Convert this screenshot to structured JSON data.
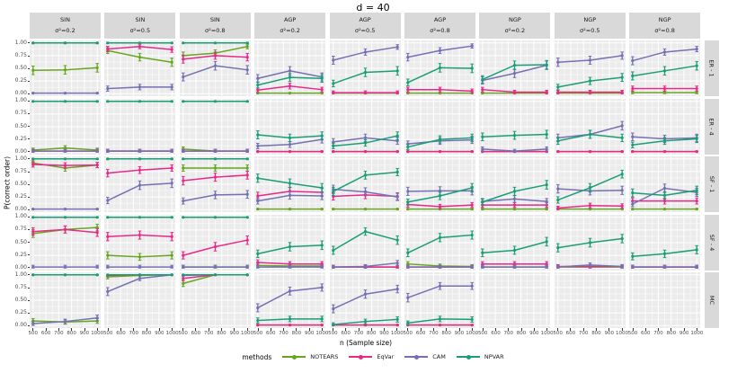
{
  "chart_data": {
    "type": "line",
    "title": "d =  40",
    "xlabel": "n (Sample size)",
    "ylabel": "P(correct order)",
    "legend_title": "methods",
    "legend_position": "bottom",
    "grid": true,
    "x": [
      500,
      750,
      1000
    ],
    "x_axis_ticks": [
      500,
      600,
      700,
      800,
      900,
      1000
    ],
    "y_axis_ticks": [
      1.0,
      0.75,
      0.5,
      0.25,
      0.0
    ],
    "ylim": [
      0,
      1
    ],
    "methods": [
      {
        "name": "NOTEARS",
        "color": "#66A61E"
      },
      {
        "name": "EqVar",
        "color": "#E7298A"
      },
      {
        "name": "CAM",
        "color": "#7570B3"
      },
      {
        "name": "NPVAR",
        "color": "#1B9E77"
      }
    ],
    "col_facets": [
      {
        "top": "SIN",
        "bottom": "σ²=0.2"
      },
      {
        "top": "SIN",
        "bottom": "σ²=0.5"
      },
      {
        "top": "SIN",
        "bottom": "σ²=0.8"
      },
      {
        "top": "AGP",
        "bottom": "σ²=0.2"
      },
      {
        "top": "AGP",
        "bottom": "σ²=0.5"
      },
      {
        "top": "AGP",
        "bottom": "σ²=0.8"
      },
      {
        "top": "NGP",
        "bottom": "σ²=0.2"
      },
      {
        "top": "NGP",
        "bottom": "σ²=0.5"
      },
      {
        "top": "NGP",
        "bottom": "σ²=0.8"
      }
    ],
    "row_facets": [
      "ER - 1",
      "ER - 4",
      "SF - 1",
      "SF - 4",
      "MC"
    ],
    "panels": [
      [
        {
          "NOTEARS": [
            0.46,
            0.47,
            0.51
          ],
          "EqVar": [
            1,
            1,
            1
          ],
          "CAM": [
            0.01,
            0.01,
            0.01
          ],
          "NPVAR": [
            1,
            1,
            1
          ]
        },
        {
          "NOTEARS": [
            0.85,
            0.72,
            0.62
          ],
          "EqVar": [
            0.88,
            0.93,
            0.87
          ],
          "CAM": [
            0.1,
            0.13,
            0.13
          ],
          "NPVAR": [
            1,
            1,
            1
          ]
        },
        {
          "NOTEARS": [
            0.75,
            0.8,
            0.93
          ],
          "EqVar": [
            0.68,
            0.75,
            0.72
          ],
          "CAM": [
            0.33,
            0.55,
            0.47
          ],
          "NPVAR": [
            1,
            1,
            1
          ]
        },
        {
          "NOTEARS": [
            0.01,
            0.01,
            0.01
          ],
          "EqVar": [
            0.07,
            0.15,
            0.08
          ],
          "CAM": [
            0.3,
            0.45,
            0.33
          ],
          "NPVAR": [
            0.17,
            0.32,
            0.3
          ]
        },
        {
          "NOTEARS": [
            0.01,
            0.01,
            0.01
          ],
          "EqVar": [
            0.02,
            0.02,
            0.02
          ],
          "CAM": [
            0.66,
            0.82,
            0.92
          ],
          "NPVAR": [
            0.2,
            0.42,
            0.45
          ]
        },
        {
          "NOTEARS": [
            0.01,
            0.01,
            0.01
          ],
          "EqVar": [
            0.08,
            0.08,
            0.05
          ],
          "CAM": [
            0.72,
            0.85,
            0.94
          ],
          "NPVAR": [
            0.22,
            0.51,
            0.5
          ]
        },
        {
          "NOTEARS": [
            0.01,
            0.01,
            0.01
          ],
          "EqVar": [
            0.08,
            0.03,
            0.03
          ],
          "CAM": [
            0.26,
            0.4,
            0.56
          ],
          "NPVAR": [
            0.28,
            0.56,
            0.57
          ]
        },
        {
          "NOTEARS": [
            0.01,
            0.01,
            0.01
          ],
          "EqVar": [
            0.03,
            0.03,
            0.03
          ],
          "CAM": [
            0.62,
            0.66,
            0.75
          ],
          "NPVAR": [
            0.13,
            0.25,
            0.32
          ]
        },
        {
          "NOTEARS": [
            0.02,
            0.02,
            0.02
          ],
          "EqVar": [
            0.1,
            0.1,
            0.1
          ],
          "CAM": [
            0.65,
            0.82,
            0.88
          ],
          "NPVAR": [
            0.35,
            0.45,
            0.55
          ]
        }
      ],
      [
        {
          "NOTEARS": [
            0.04,
            0.08,
            0.04
          ],
          "EqVar": [
            0.02,
            0.02,
            0.02
          ],
          "CAM": [
            0.02,
            0.02,
            0.02
          ],
          "NPVAR": [
            1,
            1,
            1
          ]
        },
        {
          "NOTEARS": [
            0.02,
            0.02,
            0.02
          ],
          "EqVar": [
            0.02,
            0.02,
            0.02
          ],
          "CAM": [
            0.02,
            0.02,
            0.02
          ],
          "NPVAR": [
            1,
            1,
            1
          ]
        },
        {
          "NOTEARS": [
            0.06,
            0.02,
            0.02
          ],
          "EqVar": [
            0.02,
            0.02,
            0.02
          ],
          "CAM": [
            0.02,
            0.02,
            0.02
          ],
          "NPVAR": [
            1,
            1,
            1
          ]
        },
        {
          "NOTEARS": [
            0.01,
            0.01,
            0.01
          ],
          "EqVar": [
            0.01,
            0.01,
            0.01
          ],
          "CAM": [
            0.12,
            0.15,
            0.25
          ],
          "NPVAR": [
            0.34,
            0.28,
            0.32
          ]
        },
        {
          "NOTEARS": [
            0.01,
            0.01,
            0.01
          ],
          "EqVar": [
            0.01,
            0.01,
            0.01
          ],
          "CAM": [
            0.2,
            0.28,
            0.22
          ],
          "NPVAR": [
            0.12,
            0.18,
            0.32
          ]
        },
        {
          "NOTEARS": [
            0.01,
            0.01,
            0.01
          ],
          "EqVar": [
            0.01,
            0.01,
            0.01
          ],
          "CAM": [
            0.16,
            0.22,
            0.24
          ],
          "NPVAR": [
            0.1,
            0.25,
            0.28
          ]
        },
        {
          "NOTEARS": [
            0.01,
            0.01,
            0.01
          ],
          "EqVar": [
            0.01,
            0.01,
            0.01
          ],
          "CAM": [
            0.06,
            0.02,
            0.06
          ],
          "NPVAR": [
            0.3,
            0.33,
            0.35
          ]
        },
        {
          "NOTEARS": [
            0.01,
            0.01,
            0.01
          ],
          "EqVar": [
            0.01,
            0.01,
            0.01
          ],
          "CAM": [
            0.28,
            0.35,
            0.52
          ],
          "NPVAR": [
            0.22,
            0.35,
            0.28
          ]
        },
        {
          "NOTEARS": [
            0.01,
            0.01,
            0.01
          ],
          "EqVar": [
            0.01,
            0.01,
            0.01
          ],
          "CAM": [
            0.3,
            0.26,
            0.28
          ],
          "NPVAR": [
            0.14,
            0.22,
            0.26
          ]
        }
      ],
      [
        {
          "NOTEARS": [
            0.92,
            0.82,
            0.88
          ],
          "EqVar": [
            0.89,
            0.87,
            0.88
          ],
          "CAM": [
            0.01,
            0.01,
            0.01
          ],
          "NPVAR": [
            1,
            1,
            1
          ]
        },
        {
          "NOTEARS": [
            1,
            1,
            1
          ],
          "EqVar": [
            0.72,
            0.78,
            0.82
          ],
          "CAM": [
            0.18,
            0.48,
            0.52
          ],
          "NPVAR": [
            1,
            1,
            1
          ]
        },
        {
          "NOTEARS": [
            0.82,
            0.82,
            0.82
          ],
          "EqVar": [
            0.57,
            0.64,
            0.68
          ],
          "CAM": [
            0.17,
            0.29,
            0.3
          ],
          "NPVAR": [
            1,
            1,
            1
          ]
        },
        {
          "NOTEARS": [
            0.01,
            0.01,
            0.01
          ],
          "EqVar": [
            0.27,
            0.36,
            0.34
          ],
          "CAM": [
            0.17,
            0.28,
            0.27
          ],
          "NPVAR": [
            0.62,
            0.52,
            0.43
          ]
        },
        {
          "NOTEARS": [
            0.01,
            0.01,
            0.01
          ],
          "EqVar": [
            0.26,
            0.29,
            0.26
          ],
          "CAM": [
            0.4,
            0.35,
            0.25
          ],
          "NPVAR": [
            0.36,
            0.68,
            0.74
          ]
        },
        {
          "NOTEARS": [
            0.01,
            0.01,
            0.01
          ],
          "EqVar": [
            0.1,
            0.06,
            0.09
          ],
          "CAM": [
            0.36,
            0.37,
            0.37
          ],
          "NPVAR": [
            0.15,
            0.27,
            0.43
          ]
        },
        {
          "NOTEARS": [
            0.01,
            0.01,
            0.01
          ],
          "EqVar": [
            0.09,
            0.09,
            0.09
          ],
          "CAM": [
            0.16,
            0.21,
            0.16
          ],
          "NPVAR": [
            0.15,
            0.36,
            0.49
          ]
        },
        {
          "NOTEARS": [
            0.01,
            0.01,
            0.01
          ],
          "EqVar": [
            0.03,
            0.08,
            0.07
          ],
          "CAM": [
            0.41,
            0.37,
            0.38
          ],
          "NPVAR": [
            0.19,
            0.43,
            0.7
          ]
        },
        {
          "NOTEARS": [
            0.01,
            0.01,
            0.01
          ],
          "EqVar": [
            0.17,
            0.17,
            0.17
          ],
          "CAM": [
            0.11,
            0.42,
            0.34
          ],
          "NPVAR": [
            0.33,
            0.28,
            0.38
          ]
        }
      ],
      [
        {
          "NOTEARS": [
            0.68,
            0.76,
            0.8
          ],
          "EqVar": [
            0.72,
            0.76,
            0.7
          ],
          "CAM": [
            0.02,
            0.02,
            0.02
          ],
          "NPVAR": [
            1,
            1,
            1
          ]
        },
        {
          "NOTEARS": [
            0.25,
            0.22,
            0.25
          ],
          "EqVar": [
            0.62,
            0.65,
            0.62
          ],
          "CAM": [
            0.02,
            0.02,
            0.02
          ],
          "NPVAR": [
            1,
            1,
            1
          ]
        },
        {
          "NOTEARS": [
            0.02,
            0.02,
            0.02
          ],
          "EqVar": [
            0.25,
            0.42,
            0.55
          ],
          "CAM": [
            0.02,
            0.02,
            0.02
          ],
          "NPVAR": [
            1,
            1,
            1
          ]
        },
        {
          "NOTEARS": [
            0.05,
            0.04,
            0.04
          ],
          "EqVar": [
            0.11,
            0.08,
            0.08
          ],
          "CAM": [
            0.02,
            0.02,
            0.02
          ],
          "NPVAR": [
            0.28,
            0.42,
            0.45
          ]
        },
        {
          "NOTEARS": [
            0.02,
            0.02,
            0.02
          ],
          "EqVar": [
            0.02,
            0.02,
            0.02
          ],
          "CAM": [
            0.02,
            0.03,
            0.1
          ],
          "NPVAR": [
            0.35,
            0.72,
            0.55
          ]
        },
        {
          "NOTEARS": [
            0.08,
            0.04,
            0.03
          ],
          "EqVar": [
            0.02,
            0.02,
            0.02
          ],
          "CAM": [
            0.02,
            0.02,
            0.02
          ],
          "NPVAR": [
            0.3,
            0.6,
            0.65
          ]
        },
        {
          "NOTEARS": [
            0.02,
            0.02,
            0.02
          ],
          "EqVar": [
            0.08,
            0.08,
            0.08
          ],
          "CAM": [
            0.02,
            0.02,
            0.02
          ],
          "NPVAR": [
            0.3,
            0.35,
            0.52
          ]
        },
        {
          "NOTEARS": [
            0.02,
            0.02,
            0.02
          ],
          "EqVar": [
            0.03,
            0.03,
            0.03
          ],
          "CAM": [
            0.02,
            0.06,
            0.03
          ],
          "NPVAR": [
            0.4,
            0.5,
            0.58
          ]
        },
        {
          "NOTEARS": [
            0.02,
            0.02,
            0.02
          ],
          "EqVar": [
            0.02,
            0.02,
            0.02
          ],
          "CAM": [
            0.02,
            0.02,
            0.02
          ],
          "NPVAR": [
            0.23,
            0.28,
            0.36
          ]
        }
      ],
      [
        {
          "NOTEARS": [
            0.09,
            0.07,
            0.09
          ],
          "EqVar": [
            1,
            1,
            1
          ],
          "CAM": [
            0.04,
            0.08,
            0.15
          ],
          "NPVAR": [
            1,
            1,
            1
          ]
        },
        {
          "NOTEARS": [
            0.96,
            0.99,
            1
          ],
          "EqVar": [
            0.99,
            1,
            1
          ],
          "CAM": [
            0.67,
            0.93,
            1
          ],
          "NPVAR": [
            1,
            1,
            1
          ]
        },
        {
          "NOTEARS": [
            0.83,
            1,
            1
          ],
          "EqVar": [
            0.93,
            1,
            1
          ],
          "CAM": [
            0.99,
            1,
            1
          ],
          "NPVAR": [
            1,
            1,
            1
          ]
        },
        {
          "NOTEARS": [
            0.01,
            0.01,
            0.01
          ],
          "EqVar": [
            0.01,
            0.01,
            0.01
          ],
          "CAM": [
            0.35,
            0.68,
            0.75
          ],
          "NPVAR": [
            0.1,
            0.13,
            0.13
          ]
        },
        {
          "NOTEARS": [
            0.01,
            0.01,
            0.01
          ],
          "EqVar": [
            0.01,
            0.01,
            0.01
          ],
          "CAM": [
            0.33,
            0.62,
            0.72
          ],
          "NPVAR": [
            0.02,
            0.08,
            0.12
          ]
        },
        {
          "NOTEARS": [
            0.01,
            0.01,
            0.01
          ],
          "EqVar": [
            0.01,
            0.01,
            0.01
          ],
          "CAM": [
            0.55,
            0.78,
            0.78
          ],
          "NPVAR": [
            0.05,
            0.13,
            0.12
          ]
        },
        null,
        null,
        null
      ]
    ]
  },
  "theme": {
    "panel_bg": "#EBEBEB",
    "strip_bg": "#D9D9D9",
    "grid_color": "#FFFFFF",
    "tick_text": "#4D4D4D",
    "axis_tick": "#333333"
  }
}
